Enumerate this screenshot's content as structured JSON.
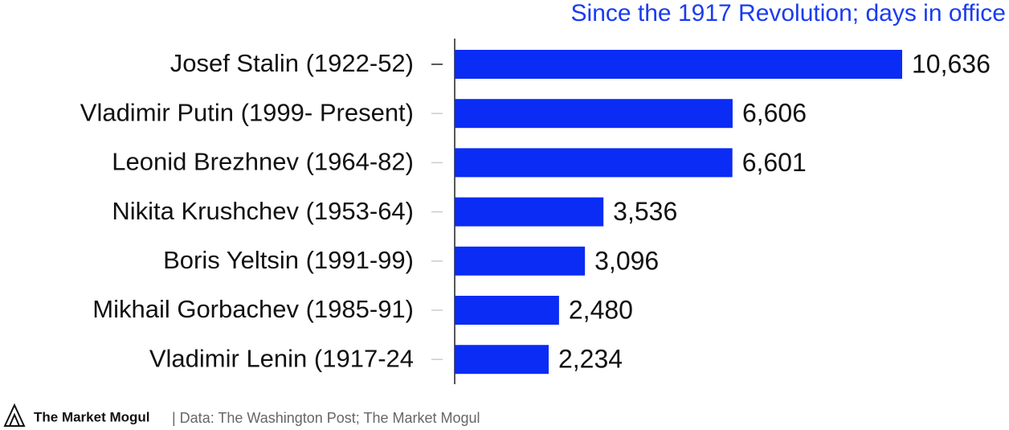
{
  "chart_data": {
    "type": "hbar",
    "subtitle": "Since the 1917 Revolution; days in office",
    "categories": [
      "Josef Stalin (1922-52)",
      "Vladimir Putin (1999- Present)",
      "Leonid Brezhnev (1964-82)",
      "Nikita Krushchev (1953-64)",
      "Boris Yeltsin (1991-99)",
      "Mikhail Gorbachev (1985-91)",
      "Vladimir Lenin (1917-24"
    ],
    "values": [
      10636,
      6606,
      6601,
      3536,
      3096,
      2480,
      2234
    ],
    "value_labels": [
      "10,636",
      "6,606",
      "6,601",
      "3,536",
      "3,096",
      "2,480",
      "2,234"
    ],
    "color": "#0a2cf5",
    "xlim": [
      0,
      10636
    ],
    "brand": "The Market Mogul",
    "source": "| Data: The Washington Post; The Market Mogul"
  }
}
